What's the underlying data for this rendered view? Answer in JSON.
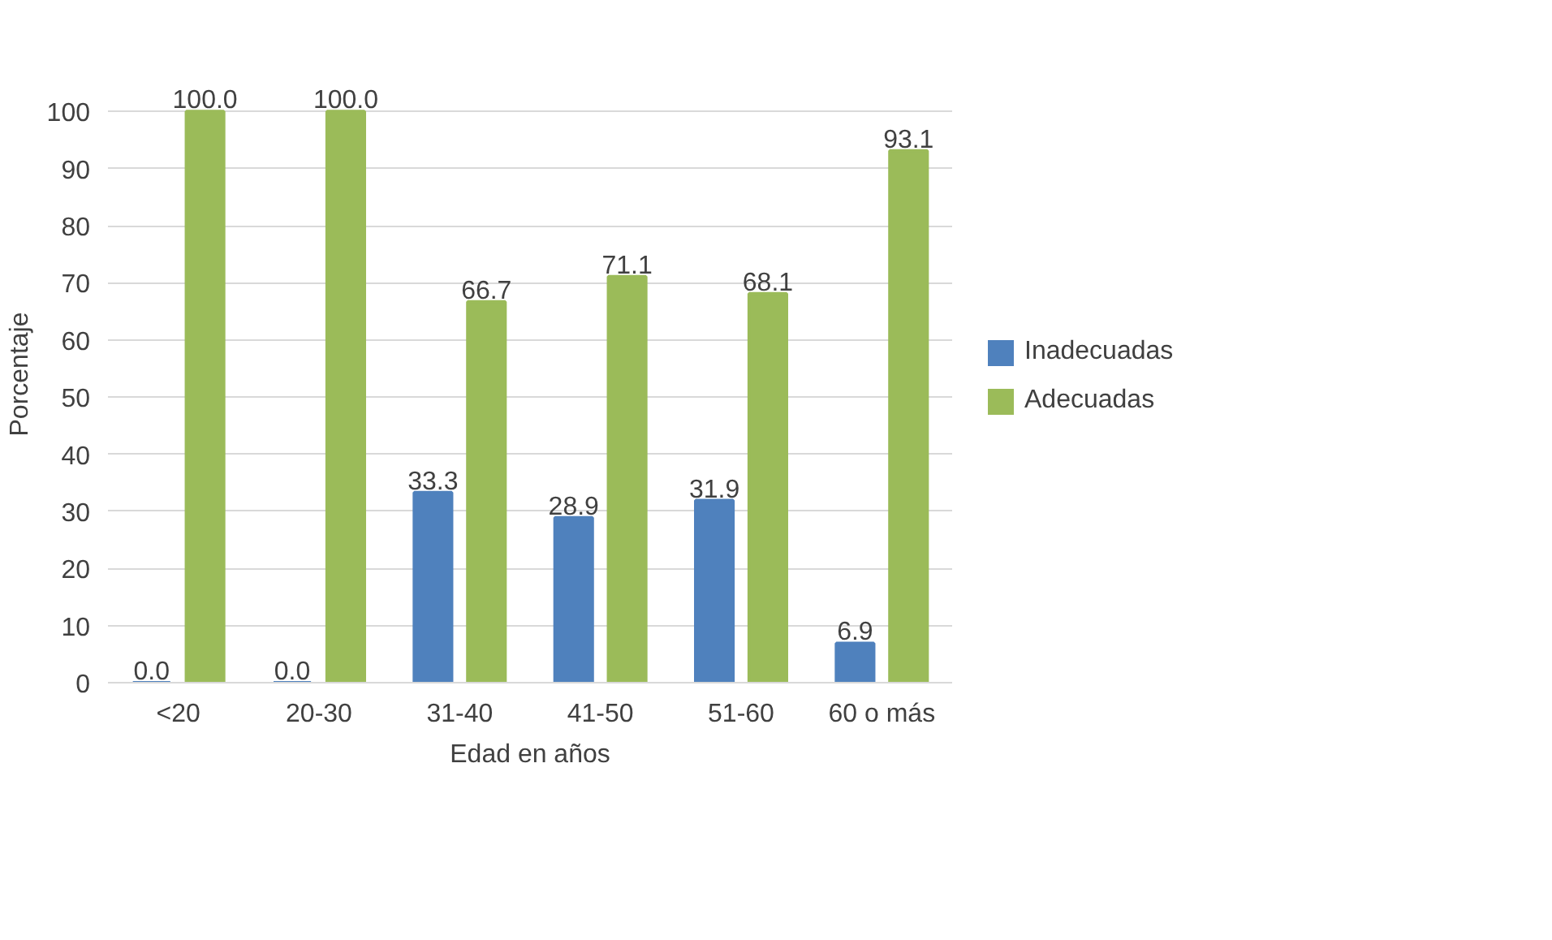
{
  "chart_data": {
    "type": "bar",
    "xlabel": "Edad en años",
    "ylabel": "Porcentaje",
    "categories": [
      "<20",
      "20-30",
      "31-40",
      "41-50",
      "51-60",
      "60 o más"
    ],
    "series": [
      {
        "name": "Inadecuadas",
        "color": "#4f81bd",
        "values": [
          0.0,
          0.0,
          33.3,
          28.9,
          31.9,
          6.9
        ],
        "value_labels": [
          "0.0",
          "0.0",
          "33.3",
          "28.9",
          "31.9",
          "6.9"
        ]
      },
      {
        "name": "Adecuadas",
        "color": "#9bbb59",
        "values": [
          100.0,
          100.0,
          66.7,
          71.1,
          68.1,
          93.1
        ],
        "value_labels": [
          "100.0",
          "100.0",
          "66.7",
          "71.1",
          "68.1",
          "93.1"
        ]
      }
    ],
    "ylim": [
      0,
      100
    ],
    "yticks": [
      0,
      10,
      20,
      30,
      40,
      50,
      60,
      70,
      80,
      90,
      100
    ],
    "grid": "y",
    "legend": "right"
  }
}
